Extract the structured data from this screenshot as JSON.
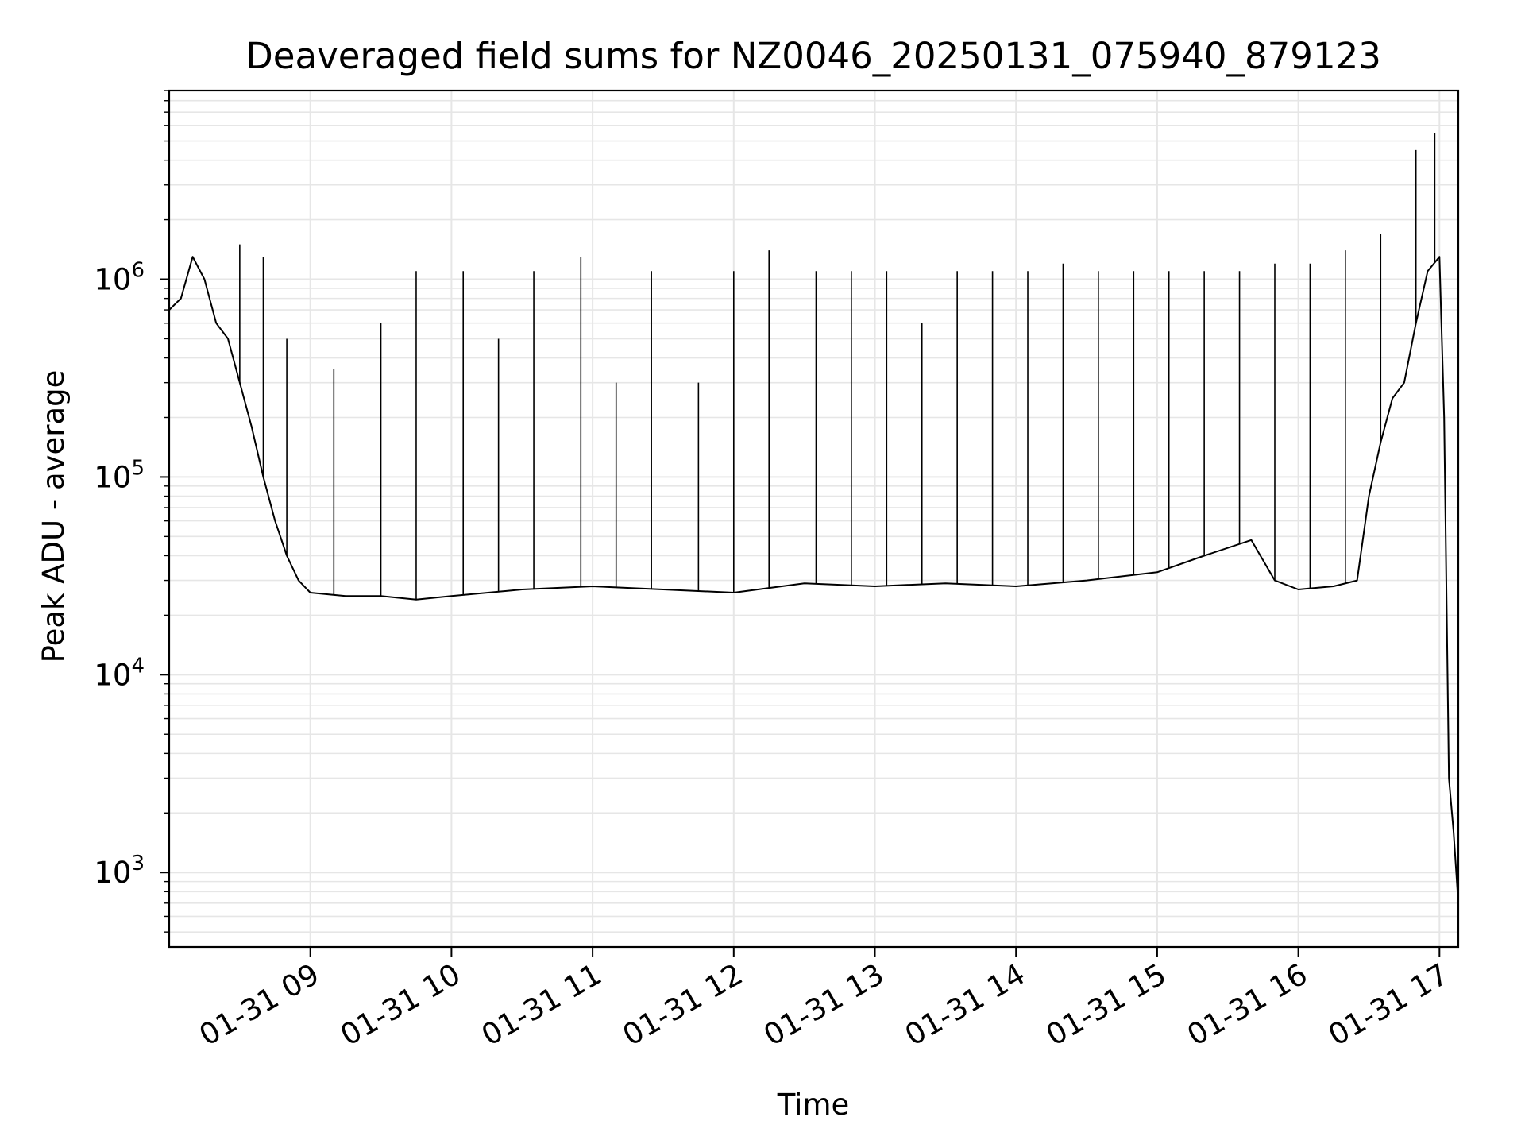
{
  "chart_data": {
    "type": "line",
    "title": "Deaveraged field sums for NZ0046_20250131_075940_879123",
    "xlabel": "Time",
    "ylabel": "Peak ADU - average",
    "yscale": "log",
    "grid": true,
    "legend": "none",
    "line_color": "#000000",
    "grid_color": "#e6e6e6",
    "xlim": [
      "2025-01-31 08:00",
      "2025-01-31 17:08"
    ],
    "ylim": [
      420,
      9000000
    ],
    "xticks": [
      "01-31 09",
      "01-31 10",
      "01-31 11",
      "01-31 12",
      "01-31 13",
      "01-31 14",
      "01-31 15",
      "01-31 16",
      "01-31 17"
    ],
    "xtick_times": [
      "2025-01-31 09:00",
      "2025-01-31 10:00",
      "2025-01-31 11:00",
      "2025-01-31 12:00",
      "2025-01-31 13:00",
      "2025-01-31 14:00",
      "2025-01-31 15:00",
      "2025-01-31 16:00",
      "2025-01-31 17:00"
    ],
    "yticks": [
      {
        "base": "10",
        "exp": "3",
        "value": 1000
      },
      {
        "base": "10",
        "exp": "4",
        "value": 10000
      },
      {
        "base": "10",
        "exp": "5",
        "value": 100000
      },
      {
        "base": "10",
        "exp": "6",
        "value": 1000000
      }
    ],
    "series": [
      {
        "x": [
          "2025-01-31 08:00",
          "2025-01-31 08:05",
          "2025-01-31 08:10",
          "2025-01-31 08:15",
          "2025-01-31 08:20",
          "2025-01-31 08:25",
          "2025-01-31 08:30",
          "2025-01-31 08:35",
          "2025-01-31 08:40",
          "2025-01-31 08:45",
          "2025-01-31 08:50",
          "2025-01-31 08:55",
          "2025-01-31 09:00",
          "2025-01-31 09:15",
          "2025-01-31 09:30",
          "2025-01-31 09:45",
          "2025-01-31 10:00",
          "2025-01-31 10:30",
          "2025-01-31 11:00",
          "2025-01-31 11:30",
          "2025-01-31 12:00",
          "2025-01-31 12:30",
          "2025-01-31 13:00",
          "2025-01-31 13:30",
          "2025-01-31 14:00",
          "2025-01-31 14:30",
          "2025-01-31 15:00",
          "2025-01-31 15:20",
          "2025-01-31 15:40",
          "2025-01-31 15:50",
          "2025-01-31 16:00",
          "2025-01-31 16:15",
          "2025-01-31 16:25",
          "2025-01-31 16:30",
          "2025-01-31 16:35",
          "2025-01-31 16:40",
          "2025-01-31 16:45",
          "2025-01-31 16:50",
          "2025-01-31 16:55",
          "2025-01-31 17:00",
          "2025-01-31 17:02",
          "2025-01-31 17:04",
          "2025-01-31 17:06",
          "2025-01-31 17:08"
        ],
        "y": [
          700000,
          800000,
          1300000,
          1000000,
          600000,
          500000,
          300000,
          180000,
          100000,
          60000,
          40000,
          30000,
          26000,
          25000,
          25000,
          24000,
          25000,
          27000,
          28000,
          27000,
          26000,
          29000,
          28000,
          29000,
          28000,
          30000,
          33000,
          40000,
          48000,
          30000,
          27000,
          28000,
          30000,
          80000,
          150000,
          250000,
          300000,
          600000,
          1100000,
          1300000,
          200000,
          3000,
          1600,
          700
        ],
        "spikes": [
          [
            "2025-01-31 08:30",
            1500000
          ],
          [
            "2025-01-31 08:40",
            1300000
          ],
          [
            "2025-01-31 08:50",
            500000
          ],
          [
            "2025-01-31 09:10",
            350000
          ],
          [
            "2025-01-31 09:30",
            600000
          ],
          [
            "2025-01-31 09:45",
            1100000
          ],
          [
            "2025-01-31 10:05",
            1100000
          ],
          [
            "2025-01-31 10:20",
            500000
          ],
          [
            "2025-01-31 10:35",
            1100000
          ],
          [
            "2025-01-31 10:55",
            1300000
          ],
          [
            "2025-01-31 11:10",
            300000
          ],
          [
            "2025-01-31 11:25",
            1100000
          ],
          [
            "2025-01-31 11:45",
            300000
          ],
          [
            "2025-01-31 12:00",
            1100000
          ],
          [
            "2025-01-31 12:15",
            1400000
          ],
          [
            "2025-01-31 12:35",
            1100000
          ],
          [
            "2025-01-31 12:50",
            1100000
          ],
          [
            "2025-01-31 13:05",
            1100000
          ],
          [
            "2025-01-31 13:20",
            600000
          ],
          [
            "2025-01-31 13:35",
            1100000
          ],
          [
            "2025-01-31 13:50",
            1100000
          ],
          [
            "2025-01-31 14:05",
            1100000
          ],
          [
            "2025-01-31 14:20",
            1200000
          ],
          [
            "2025-01-31 14:35",
            1100000
          ],
          [
            "2025-01-31 14:50",
            1100000
          ],
          [
            "2025-01-31 15:05",
            1100000
          ],
          [
            "2025-01-31 15:20",
            1100000
          ],
          [
            "2025-01-31 15:35",
            1100000
          ],
          [
            "2025-01-31 15:50",
            1200000
          ],
          [
            "2025-01-31 16:05",
            1200000
          ],
          [
            "2025-01-31 16:20",
            1400000
          ],
          [
            "2025-01-31 16:35",
            1700000
          ],
          [
            "2025-01-31 16:50",
            4500000
          ],
          [
            "2025-01-31 16:58",
            5500000
          ]
        ]
      }
    ]
  }
}
